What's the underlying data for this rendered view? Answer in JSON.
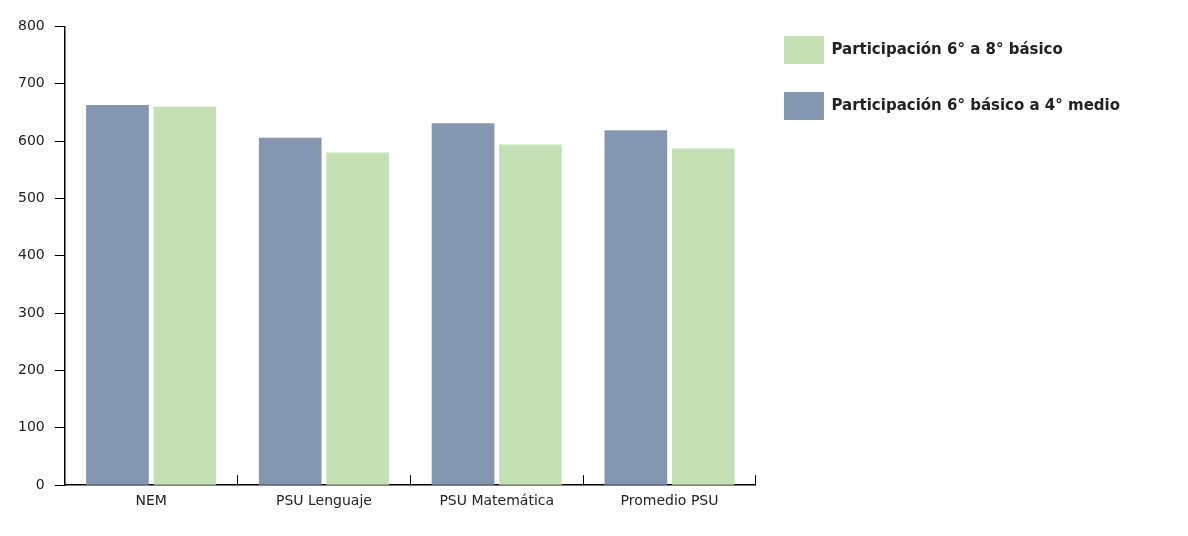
{
  "chart_data": {
    "type": "bar",
    "categories": [
      "NEM",
      "PSU Lenguaje",
      "PSU Matemática",
      "Promedio PSU"
    ],
    "series": [
      {
        "name": "Participación 6° básico a 4° medio",
        "color": "#8596b0",
        "values": [
          663,
          606,
          631,
          619
        ]
      },
      {
        "name": "Participación 6° a 8° básico",
        "color": "#c5e0b4",
        "values": [
          660,
          580,
          594,
          587
        ]
      }
    ],
    "ylim": [
      0,
      800
    ],
    "yticks": [
      0,
      100,
      200,
      300,
      400,
      500,
      600,
      700,
      800
    ],
    "grid": false,
    "legend": "top right"
  }
}
